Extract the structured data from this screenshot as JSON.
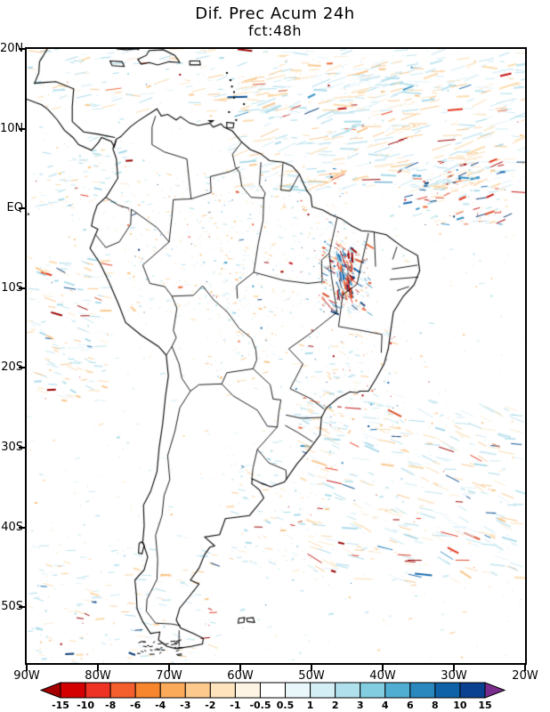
{
  "title": "Dif. Prec Acum 24h",
  "subtitle": "fct:48h",
  "chart_data": {
    "type": "heatmap",
    "title": "Dif. Prec Acum 24h",
    "subtitle": "fct:48h",
    "x_axis": {
      "labels": [
        "90W",
        "80W",
        "70W",
        "60W",
        "50W",
        "40W",
        "30W",
        "20W"
      ],
      "values": [
        -90,
        -80,
        -70,
        -60,
        -50,
        -40,
        -30,
        -20
      ]
    },
    "y_axis": {
      "labels": [
        "20N",
        "10N",
        "EQ",
        "10S",
        "20S",
        "30S",
        "40S",
        "50S"
      ],
      "values": [
        20,
        10,
        0,
        -10,
        -20,
        -30,
        -40,
        -50
      ]
    },
    "map_extent": {
      "lon": [
        -90,
        -20
      ],
      "lat": [
        -57,
        20
      ]
    },
    "colorbar": {
      "levels": [
        -15,
        -10,
        -8,
        -6,
        -4,
        -3,
        -2,
        -1,
        -0.5,
        0.5,
        1,
        2,
        3,
        4,
        6,
        8,
        10,
        15
      ],
      "labels": [
        "-15",
        "-10",
        "-8",
        "-6",
        "-4",
        "-3",
        "-2",
        "-1",
        "-0.5",
        "0.5",
        "1",
        "2",
        "3",
        "4",
        "6",
        "8",
        "10",
        "15"
      ],
      "colors": [
        "#a40000",
        "#d40000",
        "#ee3224",
        "#f55f2e",
        "#f8862f",
        "#fbaa5a",
        "#fdc98c",
        "#fee3bd",
        "#fef4e4",
        "#ffffff",
        "#eaf7fa",
        "#d3eef5",
        "#b0e0ec",
        "#83cde1",
        "#50aed3",
        "#2a88bf",
        "#0f62a7",
        "#0a4190",
        "#7b2d8e"
      ]
    }
  }
}
